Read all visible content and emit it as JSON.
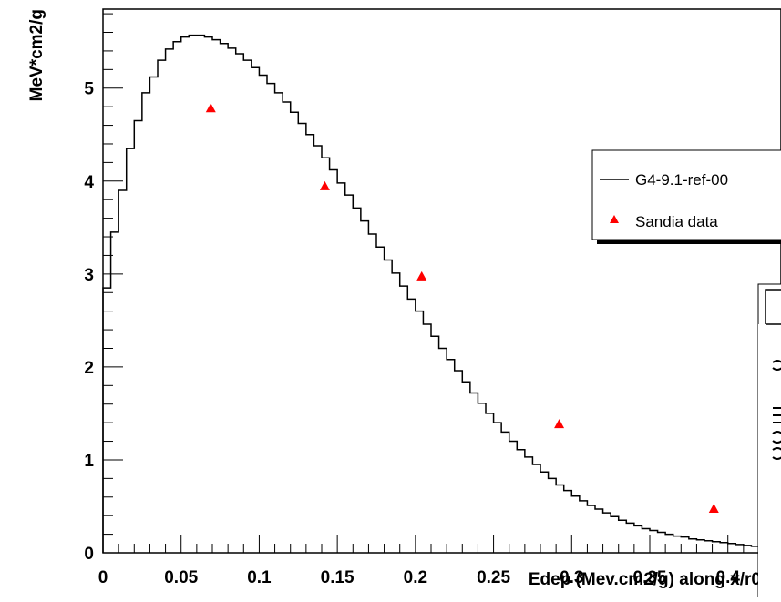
{
  "chart_data": {
    "type": "line",
    "title": "",
    "xlabel": "Edep (Mev.cm2/g) along x/r0",
    "ylabel": "MeV*cm2/g",
    "xlim": [
      0,
      0.42
    ],
    "ylim": [
      0,
      5.85
    ],
    "x_ticks": [
      0,
      0.05,
      0.1,
      0.15,
      0.2,
      0.25,
      0.3,
      0.35,
      0.4
    ],
    "x_tick_labels": [
      "0",
      "0.05",
      "0.1",
      "0.15",
      "0.2",
      "0.25",
      "0.3",
      "0.35",
      "0.4"
    ],
    "y_ticks": [
      0,
      1,
      2,
      3,
      4,
      5
    ],
    "y_tick_labels": [
      "0",
      "1",
      "2",
      "3",
      "4",
      "5"
    ],
    "grid": false,
    "legend_position": "right",
    "series": [
      {
        "name": "G4-9.1-ref-00",
        "kind": "histogram-step",
        "color": "#000000",
        "bin_width": 0.005,
        "x_start": 0,
        "values": [
          2.85,
          3.45,
          3.9,
          4.35,
          4.65,
          4.95,
          5.12,
          5.3,
          5.42,
          5.5,
          5.55,
          5.57,
          5.57,
          5.55,
          5.52,
          5.48,
          5.43,
          5.37,
          5.3,
          5.22,
          5.14,
          5.05,
          4.95,
          4.85,
          4.74,
          4.62,
          4.5,
          4.38,
          4.25,
          4.12,
          3.98,
          3.85,
          3.71,
          3.57,
          3.43,
          3.29,
          3.15,
          3.01,
          2.87,
          2.73,
          2.6,
          2.46,
          2.33,
          2.2,
          2.08,
          1.96,
          1.84,
          1.72,
          1.61,
          1.5,
          1.4,
          1.3,
          1.2,
          1.11,
          1.03,
          0.95,
          0.87,
          0.8,
          0.73,
          0.67,
          0.61,
          0.56,
          0.51,
          0.47,
          0.43,
          0.39,
          0.35,
          0.32,
          0.29,
          0.26,
          0.24,
          0.22,
          0.2,
          0.18,
          0.17,
          0.15,
          0.14,
          0.13,
          0.12,
          0.11,
          0.1,
          0.09,
          0.08,
          0.07
        ]
      },
      {
        "name": "Sandia data",
        "kind": "markers",
        "marker": "triangle",
        "color": "#ff0000",
        "x": [
          0.069,
          0.142,
          0.204,
          0.292,
          0.391
        ],
        "y": [
          4.78,
          3.94,
          2.97,
          1.38,
          0.47
        ]
      }
    ]
  }
}
